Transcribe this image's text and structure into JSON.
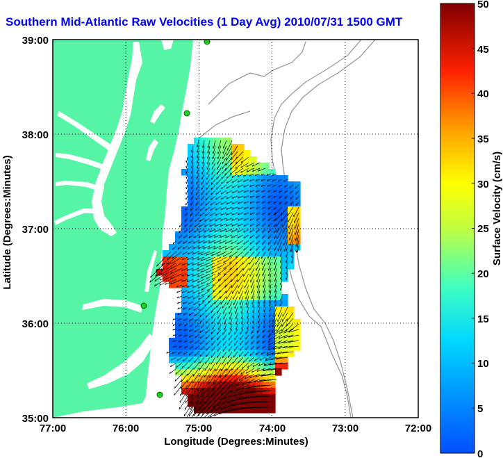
{
  "title": "Southern Mid-Atlantic Raw Velocities (1 Day Avg) 2010/07/31 1500 GMT",
  "map": {
    "x_axis_label": "Longitude (Degrees:Minutes)",
    "y_axis_label": "Latitude (Degrees:Minutes)",
    "x_ticks": [
      "77:00",
      "76:00",
      "75:00",
      "74:00",
      "73:00",
      "72:00"
    ],
    "y_ticks": [
      "39:00",
      "38:00",
      "37:00",
      "36:00",
      "35:00"
    ],
    "lon_range": [
      -77,
      -72
    ],
    "lat_range": [
      35,
      39
    ],
    "grid": "dotted",
    "land_color": "#55f5a5",
    "bathymetry_color": "#999999",
    "station_color": "#22cc22"
  },
  "colorbar": {
    "label": "Surface Velocity (cm/s)",
    "ticks": [
      "0",
      "5",
      "10",
      "15",
      "20",
      "25",
      "30",
      "35",
      "40",
      "45",
      "50"
    ],
    "range": [
      0,
      50
    ],
    "colormap": "jet"
  }
}
